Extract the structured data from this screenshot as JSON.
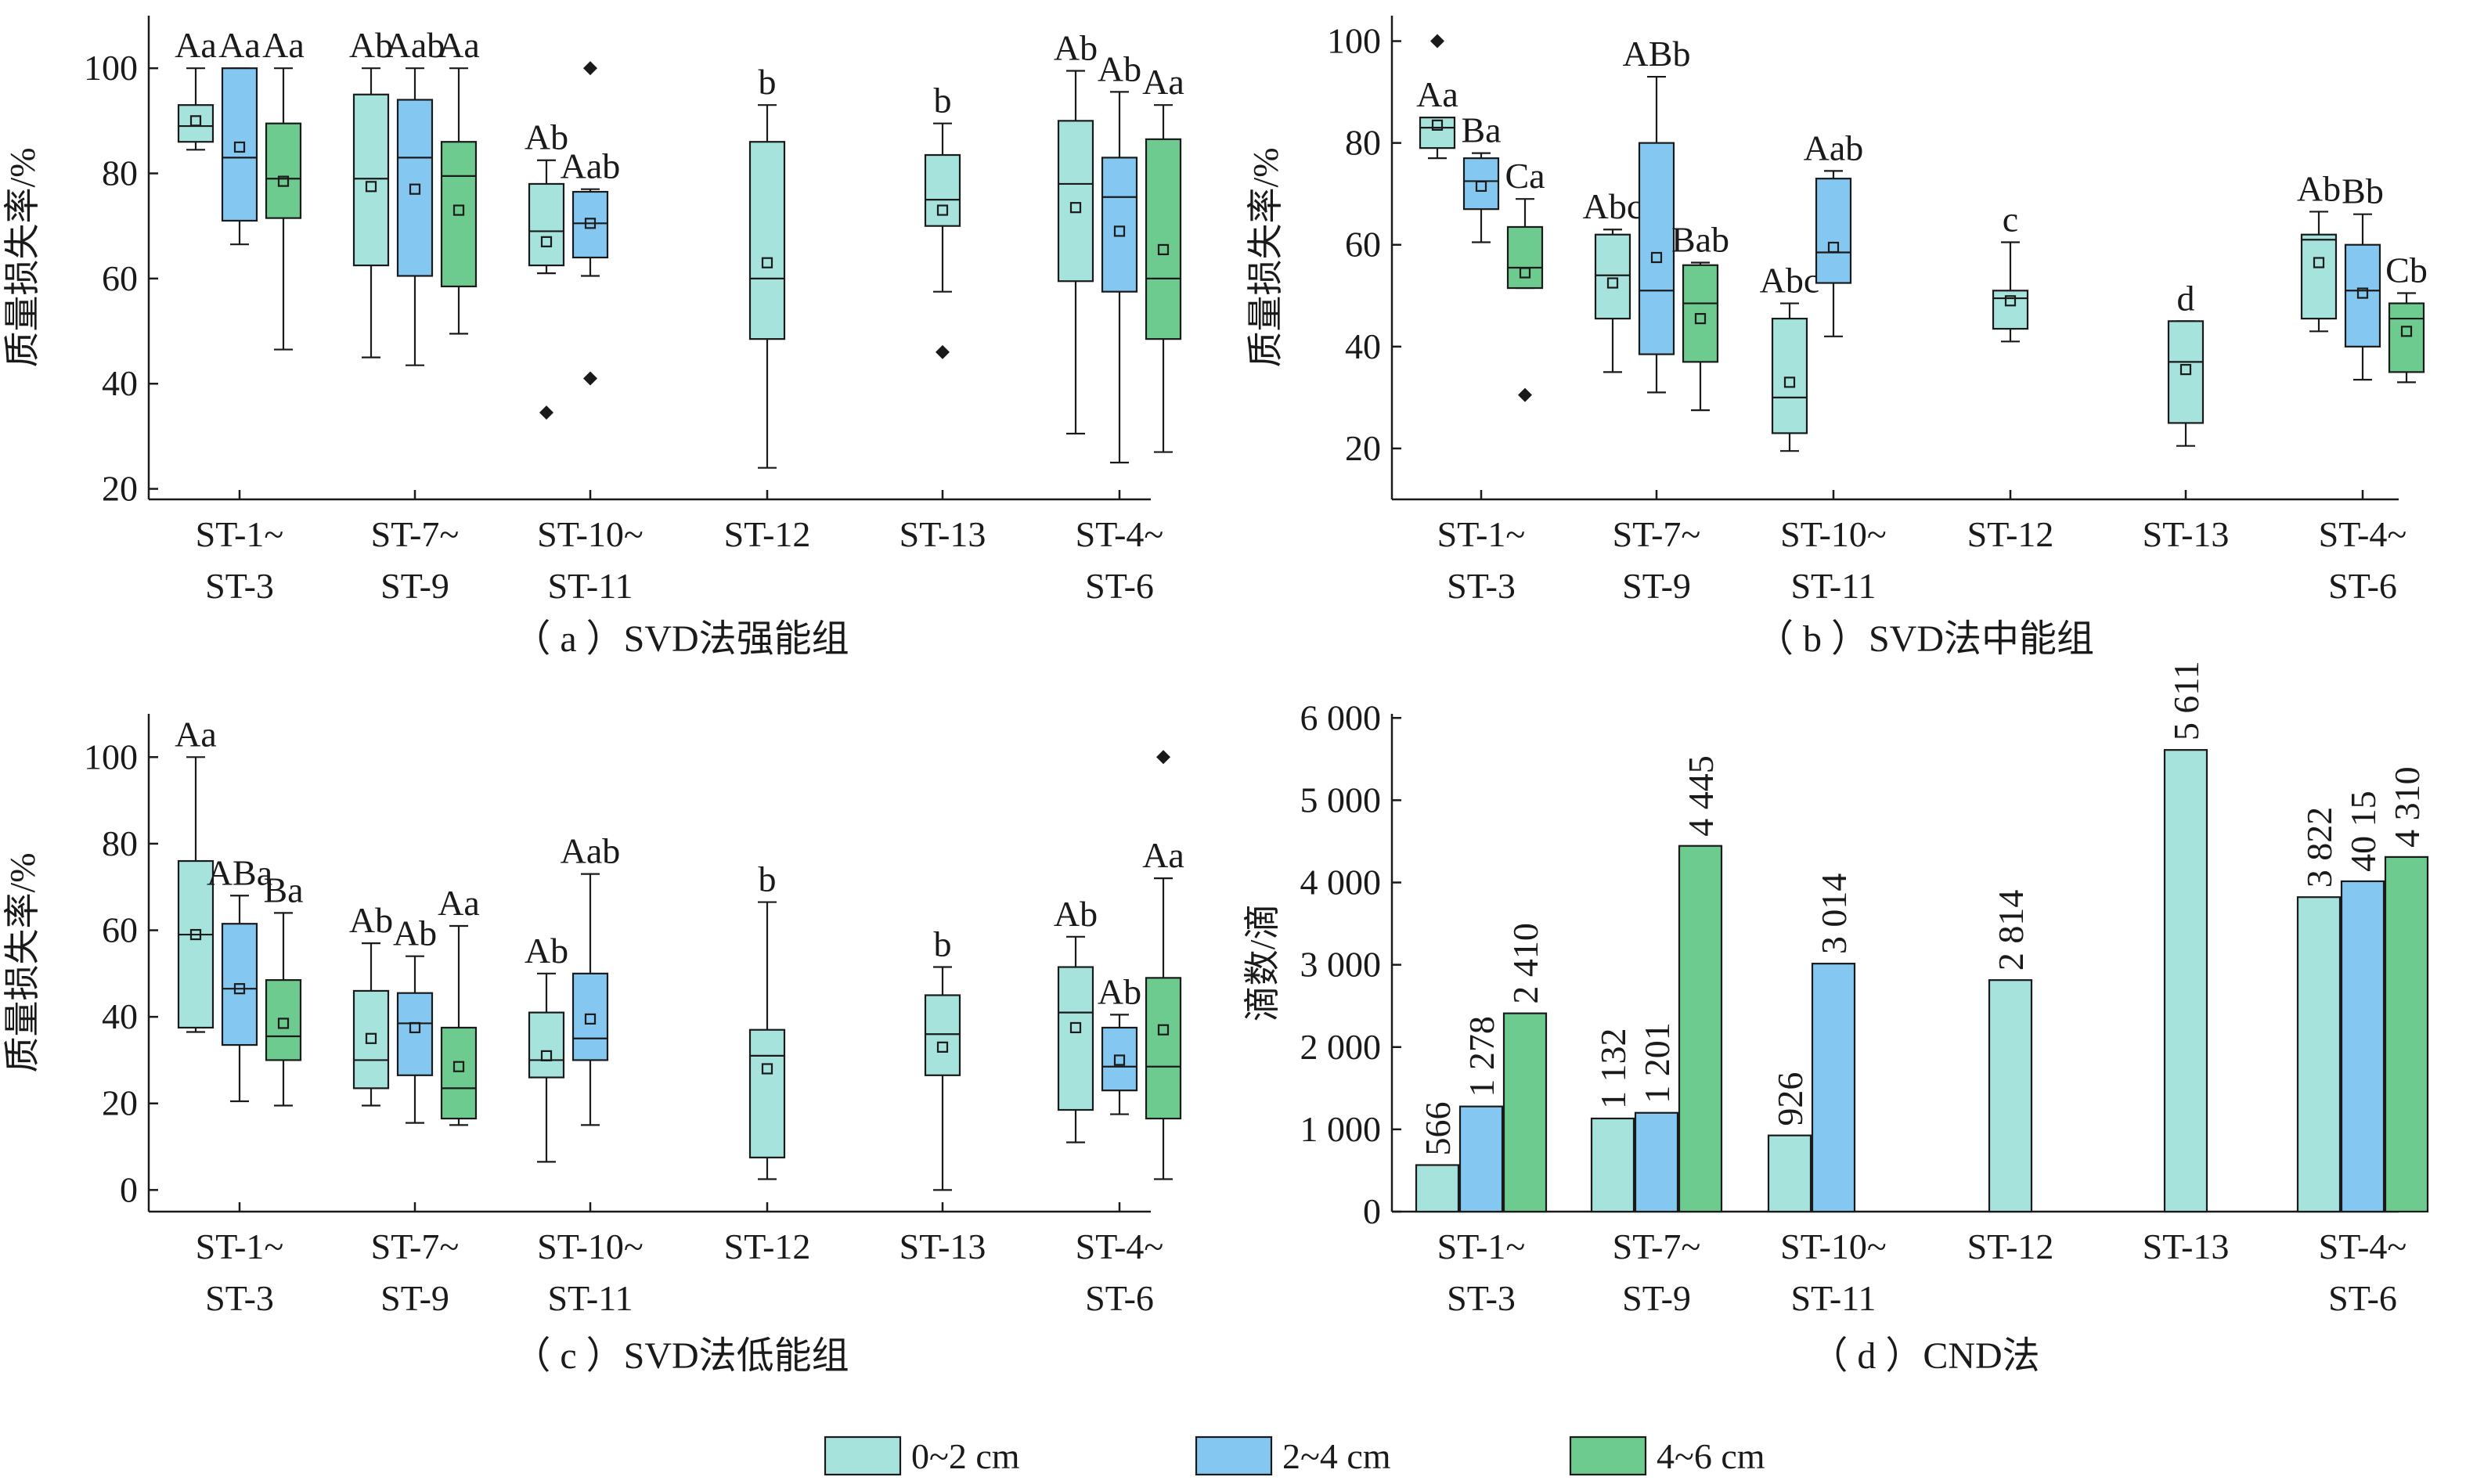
{
  "colors": {
    "0~2 cm": "#a6e3dd",
    "2~4 cm": "#84c8f2",
    "4~6 cm": "#6dcb8f"
  },
  "legend": [
    "0~2 cm",
    "2~4 cm",
    "4~6 cm"
  ],
  "chart_data": [
    {
      "type": "box",
      "title": "（ a ）SVD法强能组",
      "ylabel": "质量损失率/%",
      "ylim": [
        18,
        110
      ],
      "yticks": [
        20,
        40,
        60,
        80,
        100
      ],
      "categories": [
        [
          "ST-1~",
          "ST-3"
        ],
        [
          "ST-7~",
          "ST-9"
        ],
        [
          "ST-10~",
          "ST-11"
        ],
        [
          "ST-12"
        ],
        [
          "ST-13"
        ],
        [
          "ST-4~",
          "ST-6"
        ]
      ],
      "groups": [
        [
          {
            "series": "0~2 cm",
            "min": 84.5,
            "q1": 86,
            "median": 89,
            "q3": 93,
            "max": 100,
            "mean": 90,
            "outliers": [],
            "label": "Aa"
          },
          {
            "series": "2~4 cm",
            "min": 66.5,
            "q1": 71,
            "median": 83,
            "q3": 100,
            "max": 100,
            "mean": 85,
            "outliers": [],
            "label": "Aa"
          },
          {
            "series": "4~6 cm",
            "min": 46.5,
            "q1": 71.5,
            "median": 79,
            "q3": 89.5,
            "max": 100,
            "mean": 78.5,
            "outliers": [],
            "label": "Aa"
          }
        ],
        [
          {
            "series": "0~2 cm",
            "min": 45,
            "q1": 62.5,
            "median": 79,
            "q3": 95,
            "max": 100,
            "mean": 77.5,
            "outliers": [],
            "label": "Ab"
          },
          {
            "series": "2~4 cm",
            "min": 43.5,
            "q1": 60.5,
            "median": 83,
            "q3": 94,
            "max": 100,
            "mean": 77,
            "outliers": [],
            "label": "Aab"
          },
          {
            "series": "4~6 cm",
            "min": 49.5,
            "q1": 58.5,
            "median": 79.5,
            "q3": 86,
            "max": 100,
            "mean": 73,
            "outliers": [],
            "label": "Aa"
          }
        ],
        [
          {
            "series": "0~2 cm",
            "min": 61,
            "q1": 62.5,
            "median": 69,
            "q3": 78,
            "max": 82.5,
            "mean": 67,
            "outliers": [
              34.5
            ],
            "label": "Ab"
          },
          {
            "series": "2~4 cm",
            "min": 60.5,
            "q1": 64,
            "median": 70.5,
            "q3": 76.5,
            "max": 77,
            "mean": 70.5,
            "outliers": [
              100,
              41
            ],
            "label": "Aab"
          }
        ],
        [
          {
            "series": "0~2 cm",
            "min": 24,
            "q1": 48.5,
            "median": 60,
            "q3": 86,
            "max": 93,
            "mean": 63,
            "outliers": [],
            "label": "b"
          }
        ],
        [
          {
            "series": "0~2 cm",
            "min": 57.5,
            "q1": 70,
            "median": 75,
            "q3": 83.5,
            "max": 89.5,
            "mean": 73,
            "outliers": [
              46
            ],
            "label": "b"
          }
        ],
        [
          {
            "series": "0~2 cm",
            "min": 30.5,
            "q1": 59.5,
            "median": 78,
            "q3": 90,
            "max": 99.5,
            "mean": 73.5,
            "outliers": [],
            "label": "Ab"
          },
          {
            "series": "2~4 cm",
            "min": 25,
            "q1": 57.5,
            "median": 75.5,
            "q3": 83,
            "max": 95.5,
            "mean": 69,
            "outliers": [],
            "label": "Ab"
          },
          {
            "series": "4~6 cm",
            "min": 27,
            "q1": 48.5,
            "median": 60,
            "q3": 86.5,
            "max": 93,
            "mean": 65.5,
            "outliers": [],
            "label": "Aa"
          }
        ]
      ]
    },
    {
      "type": "box",
      "title": "（ b ）SVD法中能组",
      "ylabel": "质量损失率/%",
      "ylim": [
        10,
        105
      ],
      "yticks": [
        20,
        40,
        60,
        80,
        100
      ],
      "categories": [
        [
          "ST-1~",
          "ST-3"
        ],
        [
          "ST-7~",
          "ST-9"
        ],
        [
          "ST-10~",
          "ST-11"
        ],
        [
          "ST-12"
        ],
        [
          "ST-13"
        ],
        [
          "ST-4~",
          "ST-6"
        ]
      ],
      "groups": [
        [
          {
            "series": "0~2 cm",
            "min": 77,
            "q1": 79,
            "median": 83,
            "q3": 85,
            "max": 85,
            "mean": 83.5,
            "outliers": [
              100
            ],
            "label": "Aa"
          },
          {
            "series": "2~4 cm",
            "min": 60.5,
            "q1": 67,
            "median": 72.5,
            "q3": 77,
            "max": 78,
            "mean": 71.5,
            "outliers": [],
            "label": "Ba"
          },
          {
            "series": "4~6 cm",
            "min": 51.5,
            "q1": 51.5,
            "median": 55.5,
            "q3": 63.5,
            "max": 69,
            "mean": 54.5,
            "outliers": [
              30.5
            ],
            "label": "Ca"
          }
        ],
        [
          {
            "series": "0~2 cm",
            "min": 35,
            "q1": 45.5,
            "median": 54,
            "q3": 62,
            "max": 63,
            "mean": 52.5,
            "outliers": [],
            "label": "Abc"
          },
          {
            "series": "2~4 cm",
            "min": 31,
            "q1": 38.5,
            "median": 51,
            "q3": 80,
            "max": 93,
            "mean": 57.5,
            "outliers": [],
            "label": "ABb"
          },
          {
            "series": "4~6 cm",
            "min": 27.5,
            "q1": 37,
            "median": 48.5,
            "q3": 56,
            "max": 56.5,
            "mean": 45.5,
            "outliers": [],
            "label": "Bab"
          }
        ],
        [
          {
            "series": "0~2 cm",
            "min": 19.5,
            "q1": 23,
            "median": 30,
            "q3": 45.5,
            "max": 48.5,
            "mean": 33,
            "outliers": [],
            "label": "Abc"
          },
          {
            "series": "2~4 cm",
            "min": 42,
            "q1": 52.5,
            "median": 58.5,
            "q3": 73,
            "max": 74.5,
            "mean": 59.5,
            "outliers": [],
            "label": "Aab"
          }
        ],
        [
          {
            "series": "0~2 cm",
            "min": 41,
            "q1": 43.5,
            "median": 49.5,
            "q3": 51,
            "max": 60.5,
            "mean": 49,
            "outliers": [],
            "label": "c"
          }
        ],
        [
          {
            "series": "0~2 cm",
            "min": 20.5,
            "q1": 25,
            "median": 37,
            "q3": 45,
            "max": 45,
            "mean": 35.5,
            "outliers": [],
            "label": "d"
          }
        ],
        [
          {
            "series": "0~2 cm",
            "min": 43,
            "q1": 45.5,
            "median": 61,
            "q3": 62,
            "max": 66.5,
            "mean": 56.5,
            "outliers": [],
            "label": "Ab"
          },
          {
            "series": "2~4 cm",
            "min": 33.5,
            "q1": 40,
            "median": 51,
            "q3": 60,
            "max": 66,
            "mean": 50.5,
            "outliers": [],
            "label": "Bb"
          },
          {
            "series": "4~6 cm",
            "min": 33,
            "q1": 35,
            "median": 45.5,
            "q3": 48.5,
            "max": 50.5,
            "mean": 43,
            "outliers": [],
            "label": "Cb"
          }
        ]
      ]
    },
    {
      "type": "box",
      "title": "（ c ）SVD法低能组",
      "ylabel": "质量损失率/%",
      "ylim": [
        -5,
        110
      ],
      "yticks": [
        0,
        20,
        40,
        60,
        80,
        100
      ],
      "categories": [
        [
          "ST-1~",
          "ST-3"
        ],
        [
          "ST-7~",
          "ST-9"
        ],
        [
          "ST-10~",
          "ST-11"
        ],
        [
          "ST-12"
        ],
        [
          "ST-13"
        ],
        [
          "ST-4~",
          "ST-6"
        ]
      ],
      "groups": [
        [
          {
            "series": "0~2 cm",
            "min": 36.5,
            "q1": 37.5,
            "median": 59,
            "q3": 76,
            "max": 100,
            "mean": 59,
            "outliers": [],
            "label": "Aa"
          },
          {
            "series": "2~4 cm",
            "min": 20.5,
            "q1": 33.5,
            "median": 46.5,
            "q3": 61.5,
            "max": 68,
            "mean": 46.5,
            "outliers": [],
            "label": "ABa"
          },
          {
            "series": "4~6 cm",
            "min": 19.5,
            "q1": 30,
            "median": 35.5,
            "q3": 48.5,
            "max": 64,
            "mean": 38.5,
            "outliers": [],
            "label": "Ba"
          }
        ],
        [
          {
            "series": "0~2 cm",
            "min": 19.5,
            "q1": 23.5,
            "median": 30,
            "q3": 46,
            "max": 57,
            "mean": 35,
            "outliers": [],
            "label": "Ab"
          },
          {
            "series": "2~4 cm",
            "min": 15.5,
            "q1": 26.5,
            "median": 38.5,
            "q3": 45.5,
            "max": 54,
            "mean": 37.5,
            "outliers": [],
            "label": "Ab"
          },
          {
            "series": "4~6 cm",
            "min": 15,
            "q1": 16.5,
            "median": 23.5,
            "q3": 37.5,
            "max": 61,
            "mean": 28.5,
            "outliers": [],
            "label": "Aa"
          }
        ],
        [
          {
            "series": "0~2 cm",
            "min": 6.5,
            "q1": 26,
            "median": 30,
            "q3": 41,
            "max": 50,
            "mean": 31,
            "outliers": [],
            "label": "Ab"
          },
          {
            "series": "2~4 cm",
            "min": 15,
            "q1": 30,
            "median": 35,
            "q3": 50,
            "max": 73,
            "mean": 39.5,
            "outliers": [],
            "label": "Aab"
          }
        ],
        [
          {
            "series": "0~2 cm",
            "min": 2.5,
            "q1": 7.5,
            "median": 31,
            "q3": 37,
            "max": 66.5,
            "mean": 28,
            "outliers": [],
            "label": "b"
          }
        ],
        [
          {
            "series": "0~2 cm",
            "min": 0,
            "q1": 26.5,
            "median": 36,
            "q3": 45,
            "max": 51.5,
            "mean": 33,
            "outliers": [],
            "label": "b"
          }
        ],
        [
          {
            "series": "0~2 cm",
            "min": 11,
            "q1": 18.5,
            "median": 41,
            "q3": 51.5,
            "max": 58.5,
            "mean": 37.5,
            "outliers": [],
            "label": "Ab"
          },
          {
            "series": "2~4 cm",
            "min": 17.5,
            "q1": 23,
            "median": 28.5,
            "q3": 37.5,
            "max": 40.5,
            "mean": 30,
            "outliers": [],
            "label": "Ab"
          },
          {
            "series": "4~6 cm",
            "min": 2.5,
            "q1": 16.5,
            "median": 28.5,
            "q3": 49,
            "max": 72,
            "mean": 37,
            "outliers": [
              100
            ],
            "label": "Aa"
          }
        ]
      ]
    },
    {
      "type": "bar",
      "title": "（ d ）CND法",
      "ylabel": "滴数/滴",
      "ylim": [
        0,
        6050
      ],
      "yticks": [
        0,
        1000,
        2000,
        3000,
        4000,
        5000,
        6000
      ],
      "ytick_labels": [
        "0",
        "1 000",
        "2 000",
        "3 000",
        "4 000",
        "5 000",
        "6 000"
      ],
      "categories": [
        [
          "ST-1~",
          "ST-3"
        ],
        [
          "ST-7~",
          "ST-9"
        ],
        [
          "ST-10~",
          "ST-11"
        ],
        [
          "ST-12"
        ],
        [
          "ST-13"
        ],
        [
          "ST-4~",
          "ST-6"
        ]
      ],
      "groups": [
        [
          {
            "series": "0~2 cm",
            "value": 566,
            "label": "566"
          },
          {
            "series": "2~4 cm",
            "value": 1278,
            "label": "1 278"
          },
          {
            "series": "4~6 cm",
            "value": 2410,
            "label": "2 410"
          }
        ],
        [
          {
            "series": "0~2 cm",
            "value": 1132,
            "label": "1 132"
          },
          {
            "series": "2~4 cm",
            "value": 1201,
            "label": "1 201"
          },
          {
            "series": "4~6 cm",
            "value": 4445,
            "label": "4 445"
          }
        ],
        [
          {
            "series": "0~2 cm",
            "value": 926,
            "label": "926"
          },
          {
            "series": "2~4 cm",
            "value": 3014,
            "label": "3 014"
          }
        ],
        [
          {
            "series": "0~2 cm",
            "value": 2814,
            "label": "2 814"
          }
        ],
        [
          {
            "series": "0~2 cm",
            "value": 5611,
            "label": "5 611"
          }
        ],
        [
          {
            "series": "0~2 cm",
            "value": 3822,
            "label": "3 822"
          },
          {
            "series": "2~4 cm",
            "value": 4015,
            "label": "40 15"
          },
          {
            "series": "4~6 cm",
            "value": 4310,
            "label": "4 310"
          }
        ]
      ]
    }
  ]
}
